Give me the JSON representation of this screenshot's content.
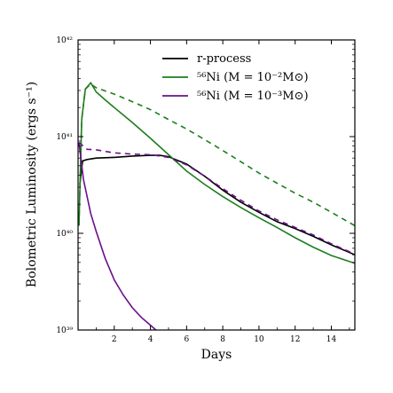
{
  "chart_data": {
    "type": "line",
    "xlabel": "Days",
    "ylabel": "Bolometric Luminosity (ergs s⁻¹)",
    "xlim": [
      0,
      15.3
    ],
    "ylim": [
      1e+39,
      1e+42
    ],
    "yscale": "log",
    "xticks": [
      2,
      4,
      6,
      8,
      10,
      12,
      14
    ],
    "yticks": [
      {
        "value": 1e+39,
        "label": "10³⁹"
      },
      {
        "value": 1e+40,
        "label": "10⁴⁰"
      },
      {
        "value": 1e+41,
        "label": "10⁴¹"
      },
      {
        "value": 1e+42,
        "label": "10⁴²"
      }
    ],
    "legend_position": "top-right",
    "series": [
      {
        "name": "r-process",
        "color": "#000000",
        "style": "solid",
        "points": [
          [
            0.1,
            3.2e+40
          ],
          [
            0.25,
            5.6e+40
          ],
          [
            0.5,
            5.8e+40
          ],
          [
            1,
            6e+40
          ],
          [
            2,
            6.1e+40
          ],
          [
            3,
            6.3e+40
          ],
          [
            4,
            6.4e+40
          ],
          [
            4.5,
            6.4e+40
          ],
          [
            5,
            6.2e+40
          ],
          [
            6,
            5.2e+40
          ],
          [
            7,
            3.9e+40
          ],
          [
            8,
            2.8e+40
          ],
          [
            9,
            2.1e+40
          ],
          [
            10,
            1.65e+40
          ],
          [
            11,
            1.32e+40
          ],
          [
            12,
            1.12e+40
          ],
          [
            13,
            9.3e+39
          ],
          [
            14,
            7.6e+39
          ],
          [
            15.3,
            6e+39
          ]
        ]
      },
      {
        "name": "⁵⁶Ni (M = 10⁻²M⊙)",
        "color": "#1e7d1e",
        "style": "solid",
        "points": [
          [
            0.05,
            1.2e+40
          ],
          [
            0.2,
            1.5e+41
          ],
          [
            0.4,
            3.1e+41
          ],
          [
            0.7,
            3.6e+41
          ],
          [
            1,
            2.9e+41
          ],
          [
            1.5,
            2.4e+41
          ],
          [
            2,
            2e+41
          ],
          [
            3,
            1.4e+41
          ],
          [
            4,
            9.6e+40
          ],
          [
            5,
            6.5e+40
          ],
          [
            6,
            4.4e+40
          ],
          [
            7,
            3.2e+40
          ],
          [
            8,
            2.4e+40
          ],
          [
            9,
            1.85e+40
          ],
          [
            10,
            1.45e+40
          ],
          [
            11,
            1.15e+40
          ],
          [
            12,
            9e+39
          ],
          [
            13,
            7.2e+39
          ],
          [
            14,
            5.9e+39
          ],
          [
            15.3,
            4.9e+39
          ]
        ]
      },
      {
        "name": "⁵⁶Ni (M = 10⁻²M⊙) dashed",
        "color": "#1e7d1e",
        "style": "dashed",
        "points": [
          [
            0.05,
            1.2e+40
          ],
          [
            0.2,
            1.5e+41
          ],
          [
            0.4,
            3.1e+41
          ],
          [
            0.7,
            3.5e+41
          ],
          [
            1,
            3.2e+41
          ],
          [
            2,
            2.75e+41
          ],
          [
            3,
            2.3e+41
          ],
          [
            4,
            1.9e+41
          ],
          [
            5,
            1.5e+41
          ],
          [
            6,
            1.2e+41
          ],
          [
            7,
            9.3e+40
          ],
          [
            8,
            7.2e+40
          ],
          [
            9,
            5.5e+40
          ],
          [
            10,
            4.2e+40
          ],
          [
            11,
            3.3e+40
          ],
          [
            12,
            2.6e+40
          ],
          [
            13,
            2.1e+40
          ],
          [
            14,
            1.65e+40
          ],
          [
            15.3,
            1.2e+40
          ]
        ]
      },
      {
        "name": "⁵⁶Ni (M = 10⁻³M⊙)",
        "color": "#6a0f8a",
        "style": "solid",
        "points": [
          [
            0.05,
            8.7e+40
          ],
          [
            0.3,
            3.6e+40
          ],
          [
            0.7,
            1.6e+40
          ],
          [
            1,
            1.05e+40
          ],
          [
            1.5,
            5.5e+39
          ],
          [
            2,
            3.3e+39
          ],
          [
            2.5,
            2.3e+39
          ],
          [
            3,
            1.7e+39
          ],
          [
            3.5,
            1.35e+39
          ],
          [
            4,
            1.12e+39
          ],
          [
            4.3,
            1e+39
          ]
        ]
      },
      {
        "name": "⁵⁶Ni (M = 10⁻³M⊙) dashed",
        "color": "#6a0f8a",
        "style": "dashed",
        "points": [
          [
            0.05,
            8.7e+40
          ],
          [
            0.5,
            7.4e+40
          ],
          [
            1,
            7.3e+40
          ],
          [
            2,
            6.8e+40
          ],
          [
            3,
            6.6e+40
          ],
          [
            4,
            6.5e+40
          ],
          [
            5,
            6.1e+40
          ],
          [
            6,
            5.1e+40
          ],
          [
            7,
            3.9e+40
          ],
          [
            8,
            2.9e+40
          ],
          [
            9,
            2.2e+40
          ],
          [
            10,
            1.7e+40
          ],
          [
            11,
            1.38e+40
          ],
          [
            12,
            1.15e+40
          ],
          [
            13,
            9.6e+39
          ],
          [
            14,
            7.8e+39
          ],
          [
            15.3,
            6.1e+39
          ]
        ]
      }
    ],
    "legend": [
      {
        "label": "r-process",
        "color": "#000000"
      },
      {
        "label": "⁵⁶Ni (M = 10⁻²M⊙)",
        "color": "#1e7d1e"
      },
      {
        "label": "⁵⁶Ni (M = 10⁻³M⊙)",
        "color": "#6a0f8a"
      }
    ]
  }
}
